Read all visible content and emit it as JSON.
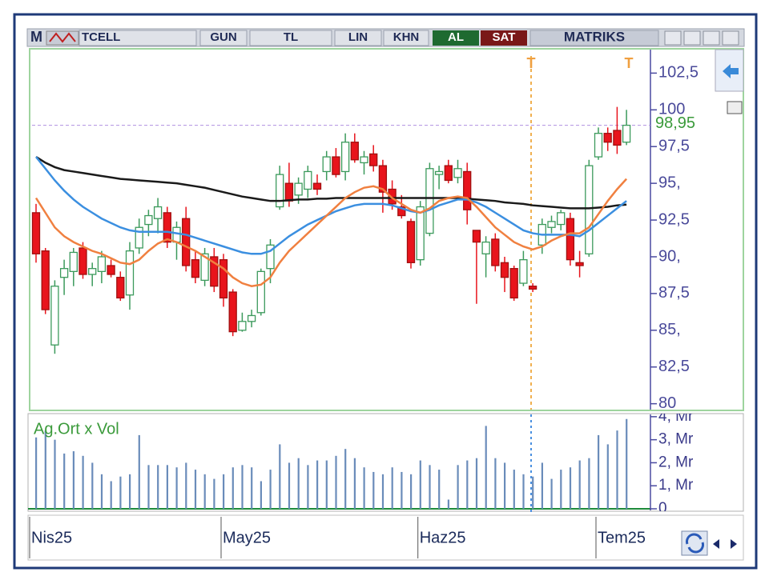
{
  "toolbar": {
    "prefix": "M",
    "symbol": "TCELL",
    "period": "GUN",
    "currency": "TL",
    "scale": "LIN",
    "mode": "KHN",
    "buy": "AL",
    "sell": "SAT",
    "brand": "MATRIKS"
  },
  "chart_data": [
    {
      "type": "candlestick",
      "categories": [
        "Nis25",
        null,
        null,
        null,
        null,
        null,
        null,
        null,
        null,
        null,
        null,
        null,
        null,
        null,
        null,
        null,
        null,
        null,
        null,
        null,
        "May25",
        null,
        null,
        null,
        null,
        null,
        null,
        null,
        null,
        null,
        null,
        null,
        null,
        null,
        null,
        null,
        null,
        null,
        null,
        null,
        null,
        "Haz25",
        null,
        null,
        null,
        null,
        null,
        null,
        null,
        null,
        null,
        null,
        null,
        null,
        null,
        null,
        null,
        null,
        null,
        null,
        "Tem25",
        null,
        null,
        null
      ],
      "open": [
        93.0,
        90.4,
        84.0,
        88.6,
        89.0,
        90.6,
        88.8,
        89.0,
        89.4,
        88.6,
        87.4,
        90.6,
        92.2,
        92.6,
        93.0,
        91.0,
        92.6,
        89.8,
        88.4,
        90.0,
        89.8,
        87.6,
        85.0,
        85.6,
        86.2,
        89.2,
        93.4,
        95.0,
        94.2,
        94.6,
        95.0,
        95.8,
        96.8,
        95.8,
        97.8,
        96.4,
        97.0,
        96.2,
        94.6,
        93.4,
        92.4,
        89.8,
        91.6,
        95.6,
        96.2,
        95.4,
        95.8,
        91.8,
        90.2,
        91.2,
        89.6,
        89.2,
        88.2,
        88.0,
        90.8,
        92.0,
        92.2,
        92.6,
        89.6,
        90.2,
        96.8,
        98.4,
        98.6,
        97.8
      ],
      "high": [
        93.6,
        90.6,
        88.4,
        89.8,
        90.6,
        91.0,
        89.6,
        90.4,
        89.8,
        89.0,
        91.0,
        92.6,
        93.2,
        94.0,
        93.4,
        92.4,
        93.4,
        90.4,
        90.6,
        90.6,
        90.2,
        87.8,
        86.2,
        86.4,
        89.2,
        91.2,
        96.2,
        96.4,
        95.4,
        96.2,
        95.6,
        97.2,
        97.4,
        98.4,
        98.4,
        97.2,
        97.6,
        96.6,
        95.2,
        94.2,
        92.6,
        93.8,
        96.4,
        96.2,
        96.6,
        96.6,
        96.4,
        91.8,
        91.4,
        91.6,
        90.0,
        89.4,
        90.4,
        88.2,
        92.6,
        92.8,
        93.2,
        93.0,
        90.4,
        96.6,
        98.8,
        98.8,
        100.2,
        100.0
      ],
      "low": [
        89.6,
        86.1,
        83.4,
        87.4,
        88.0,
        88.5,
        88.0,
        88.2,
        88.6,
        87.0,
        86.4,
        90.2,
        91.4,
        91.6,
        90.6,
        89.8,
        89.0,
        88.2,
        88.0,
        87.6,
        86.6,
        84.6,
        84.9,
        85.2,
        86.0,
        88.2,
        93.2,
        93.4,
        93.6,
        94.0,
        94.2,
        95.2,
        95.4,
        95.2,
        96.4,
        95.6,
        95.8,
        93.0,
        93.2,
        92.6,
        89.2,
        89.4,
        91.4,
        94.6,
        95.0,
        95.0,
        92.2,
        86.8,
        88.6,
        89.0,
        87.6,
        87.0,
        88.0,
        87.6,
        90.2,
        91.6,
        91.8,
        89.4,
        88.6,
        90.0,
        96.6,
        97.2,
        97.0,
        97.6
      ],
      "close": [
        90.2,
        86.4,
        88.0,
        89.2,
        90.3,
        88.8,
        89.2,
        90.0,
        88.8,
        87.2,
        90.4,
        92.0,
        92.8,
        93.4,
        91.0,
        92.0,
        89.4,
        88.6,
        90.2,
        88.0,
        87.2,
        84.9,
        85.6,
        86.0,
        89.0,
        90.8,
        95.6,
        93.8,
        95.0,
        95.8,
        94.6,
        96.8,
        95.6,
        97.8,
        96.6,
        96.8,
        96.2,
        94.4,
        93.6,
        92.8,
        89.6,
        93.4,
        96.0,
        95.8,
        95.2,
        96.0,
        93.2,
        91.0,
        91.0,
        89.4,
        88.6,
        87.2,
        89.8,
        87.8,
        92.2,
        92.4,
        93.0,
        89.8,
        89.4,
        96.2,
        98.4,
        97.8,
        97.6,
        98.95
      ],
      "up_color": "#3c9a5c",
      "down_color": "#e8141c",
      "series": [
        {
          "color": "#1a1a1a",
          "values": [
            96.8,
            96.4,
            96.1,
            95.9,
            95.8,
            95.7,
            95.6,
            95.5,
            95.4,
            95.3,
            95.25,
            95.2,
            95.15,
            95.1,
            95.05,
            95.0,
            94.9,
            94.8,
            94.7,
            94.55,
            94.4,
            94.25,
            94.1,
            94.0,
            93.9,
            93.8,
            93.8,
            93.85,
            93.9,
            93.9,
            93.95,
            93.95,
            94.0,
            94.0,
            94.0,
            94.0,
            94.0,
            94.0,
            94.0,
            94.0,
            94.0,
            94.0,
            94.0,
            94.0,
            94.0,
            94.0,
            93.95,
            93.9,
            93.85,
            93.8,
            93.7,
            93.65,
            93.6,
            93.5,
            93.45,
            93.4,
            93.35,
            93.3,
            93.3,
            93.3,
            93.35,
            93.4,
            93.5,
            93.55
          ]
        },
        {
          "color": "#3b8fe0",
          "values": [
            96.8,
            96.0,
            95.2,
            94.5,
            93.9,
            93.4,
            93.0,
            92.6,
            92.3,
            92.0,
            91.8,
            91.7,
            91.7,
            91.7,
            91.7,
            91.6,
            91.5,
            91.3,
            91.1,
            90.9,
            90.7,
            90.5,
            90.3,
            90.2,
            90.2,
            90.4,
            90.9,
            91.4,
            91.8,
            92.2,
            92.5,
            92.8,
            93.1,
            93.3,
            93.5,
            93.6,
            93.6,
            93.6,
            93.5,
            93.3,
            93.1,
            93.0,
            93.2,
            93.5,
            93.7,
            93.9,
            93.9,
            93.7,
            93.4,
            93.0,
            92.6,
            92.2,
            91.8,
            91.6,
            91.5,
            91.5,
            91.5,
            91.5,
            91.4,
            91.8,
            92.3,
            92.8,
            93.3,
            93.8
          ]
        },
        {
          "color": "#f08040",
          "values": [
            94.0,
            93.0,
            92.0,
            91.4,
            91.0,
            90.7,
            90.4,
            90.2,
            89.9,
            89.6,
            89.5,
            89.8,
            90.4,
            90.9,
            91.2,
            91.0,
            90.7,
            90.4,
            90.0,
            89.6,
            89.2,
            88.6,
            88.2,
            88.0,
            88.1,
            88.6,
            89.6,
            90.4,
            91.0,
            91.6,
            92.2,
            92.8,
            93.4,
            94.0,
            94.4,
            94.7,
            94.8,
            94.6,
            94.0,
            93.6,
            93.2,
            93.0,
            93.3,
            93.8,
            94.0,
            94.1,
            94.0,
            93.4,
            92.7,
            92.0,
            91.5,
            91.0,
            90.7,
            90.5,
            90.7,
            91.1,
            91.4,
            91.6,
            91.6,
            92.0,
            92.9,
            93.8,
            94.6,
            95.3
          ]
        }
      ],
      "ylim": [
        79.6,
        104.1
      ],
      "yticks": [
        80,
        {
          "value": 82.5,
          "label": "82,5"
        },
        {
          "value": 85,
          "label": "85,"
        },
        {
          "value": 87.5,
          "label": "87,5"
        },
        {
          "value": 90,
          "label": "90,"
        },
        {
          "value": 92.5,
          "label": "92,5"
        },
        {
          "value": 95,
          "label": "95,"
        },
        {
          "value": 97.5,
          "label": "97,5"
        },
        100,
        {
          "value": 102.5,
          "label": "102,5"
        }
      ],
      "last_value": 98.95,
      "last_value_label": "98,95",
      "annotations": [
        "T",
        "T"
      ]
    },
    {
      "type": "bar",
      "title": "Ag.Ort x Vol",
      "color": "#6a8cba",
      "values": [
        3.1,
        3.4,
        3.0,
        2.4,
        2.5,
        2.3,
        2.0,
        1.5,
        1.2,
        1.4,
        1.5,
        3.2,
        1.9,
        1.9,
        1.9,
        1.8,
        2.0,
        1.7,
        1.5,
        1.3,
        1.5,
        1.8,
        1.9,
        1.8,
        1.2,
        1.7,
        2.8,
        2.0,
        2.2,
        1.9,
        2.1,
        2.1,
        2.3,
        2.6,
        2.2,
        1.8,
        1.6,
        1.5,
        1.8,
        1.6,
        1.5,
        2.1,
        1.9,
        1.7,
        0.4,
        1.9,
        2.1,
        2.2,
        3.6,
        2.2,
        2.0,
        1.7,
        1.5,
        1.4,
        2.0,
        1.3,
        1.7,
        1.8,
        2.1,
        2.2,
        3.2,
        2.8,
        3.4,
        3.9
      ],
      "ylim": [
        0,
        4.1
      ],
      "yticks": [
        0,
        {
          "value": 1,
          "label": "1, Mr"
        },
        {
          "value": 2,
          "label": "2, Mr"
        },
        {
          "value": 3,
          "label": "3, Mr"
        },
        {
          "value": 4,
          "label": "4, Mr"
        }
      ]
    }
  ]
}
